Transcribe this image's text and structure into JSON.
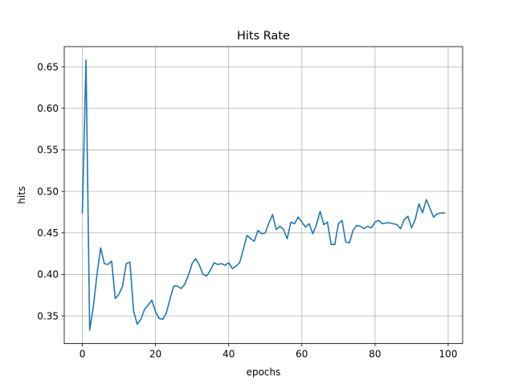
{
  "chart_data": {
    "type": "line",
    "title": "Hits Rate",
    "xlabel": "epochs",
    "ylabel": "hits",
    "xlim": [
      -4.95,
      103.95
    ],
    "ylim": [
      0.3167,
      0.6743
    ],
    "xticks": [
      0,
      20,
      40,
      60,
      80,
      100
    ],
    "xtick_labels": [
      "0",
      "20",
      "40",
      "60",
      "80",
      "100"
    ],
    "yticks": [
      0.35,
      0.4,
      0.45,
      0.5,
      0.55,
      0.6,
      0.65
    ],
    "ytick_labels": [
      "0.35",
      "0.40",
      "0.45",
      "0.50",
      "0.55",
      "0.60",
      "0.65"
    ],
    "grid": true,
    "series": [
      {
        "color": "#1f77b4",
        "x": [
          0,
          1,
          2,
          3,
          4,
          5,
          6,
          7,
          8,
          9,
          10,
          11,
          12,
          13,
          14,
          15,
          16,
          17,
          18,
          19,
          20,
          21,
          22,
          23,
          24,
          25,
          26,
          27,
          28,
          29,
          30,
          31,
          32,
          33,
          34,
          35,
          36,
          37,
          38,
          39,
          40,
          41,
          42,
          43,
          44,
          45,
          46,
          47,
          48,
          49,
          50,
          51,
          52,
          53,
          54,
          55,
          56,
          57,
          58,
          59,
          60,
          61,
          62,
          63,
          64,
          65,
          66,
          67,
          68,
          69,
          70,
          71,
          72,
          73,
          74,
          75,
          76,
          77,
          78,
          79,
          80,
          81,
          82,
          83,
          84,
          85,
          86,
          87,
          88,
          89,
          90,
          91,
          92,
          93,
          94,
          95,
          96,
          97,
          98,
          99
        ],
        "y": [
          0.474,
          0.658,
          0.333,
          0.361,
          0.4,
          0.432,
          0.413,
          0.412,
          0.416,
          0.371,
          0.376,
          0.386,
          0.413,
          0.415,
          0.356,
          0.34,
          0.346,
          0.358,
          0.363,
          0.369,
          0.355,
          0.347,
          0.346,
          0.354,
          0.371,
          0.386,
          0.386,
          0.383,
          0.388,
          0.399,
          0.413,
          0.419,
          0.411,
          0.4,
          0.398,
          0.405,
          0.414,
          0.412,
          0.413,
          0.411,
          0.414,
          0.407,
          0.41,
          0.414,
          0.43,
          0.447,
          0.443,
          0.44,
          0.453,
          0.449,
          0.45,
          0.462,
          0.472,
          0.454,
          0.458,
          0.454,
          0.443,
          0.463,
          0.461,
          0.469,
          0.463,
          0.457,
          0.461,
          0.449,
          0.46,
          0.476,
          0.46,
          0.463,
          0.436,
          0.436,
          0.461,
          0.465,
          0.439,
          0.438,
          0.453,
          0.459,
          0.458,
          0.455,
          0.458,
          0.456,
          0.463,
          0.465,
          0.461,
          0.462,
          0.462,
          0.461,
          0.46,
          0.455,
          0.466,
          0.47,
          0.456,
          0.466,
          0.485,
          0.474,
          0.49,
          0.48,
          0.469,
          0.473,
          0.474,
          0.474
        ]
      }
    ]
  }
}
